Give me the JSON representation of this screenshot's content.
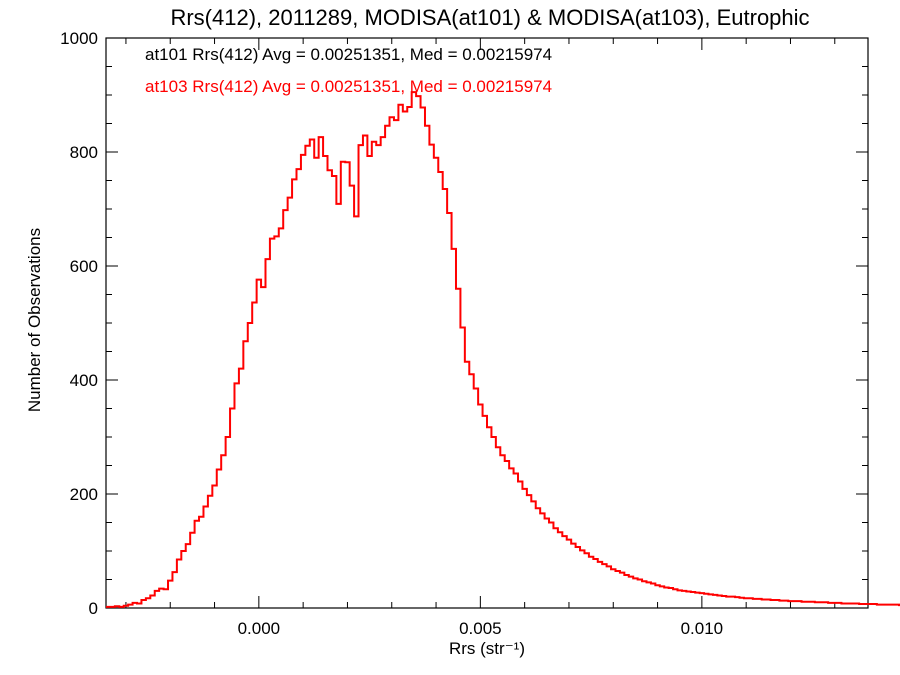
{
  "chart_data": {
    "type": "histogram",
    "title": "Rrs(412), 2011289, MODISA(at101) & MODISA(at103), Eutrophic",
    "xlabel": "Rrs (str⁻¹)",
    "ylabel": "Number of Observations",
    "xlim": [
      -0.00345,
      0.01375
    ],
    "ylim": [
      0,
      1000
    ],
    "x_ticks": [
      0.0,
      0.005,
      0.01
    ],
    "x_tick_labels": [
      "0.000",
      "0.005",
      "0.010"
    ],
    "y_ticks": [
      0,
      200,
      400,
      600,
      800,
      1000
    ],
    "y_tick_labels": [
      "0",
      "200",
      "400",
      "600",
      "800",
      "1000"
    ],
    "bin_width": 0.0001,
    "bin_start": -0.00345,
    "annotations": [
      {
        "text": "at101 Rrs(412) Avg = 0.00251351, Med = 0.00215974",
        "color": "#000000"
      },
      {
        "text": "at103 Rrs(412) Avg = 0.00251351, Med = 0.00215974",
        "color": "#ff0000"
      }
    ],
    "series": [
      {
        "color": "#ff0000",
        "counts": [
          2,
          2,
          3,
          2,
          4,
          6,
          9,
          8,
          14,
          17,
          22,
          30,
          34,
          33,
          48,
          63,
          85,
          100,
          112,
          132,
          153,
          160,
          178,
          197,
          215,
          243,
          268,
          300,
          350,
          394,
          420,
          468,
          500,
          536,
          576,
          563,
          612,
          648,
          652,
          666,
          698,
          720,
          752,
          770,
          795,
          811,
          822,
          790,
          826,
          793,
          768,
          758,
          709,
          783,
          782,
          741,
          687,
          812,
          829,
          793,
          818,
          812,
          826,
          846,
          861,
          856,
          883,
          871,
          879,
          905,
          898,
          878,
          846,
          813,
          790,
          765,
          735,
          693,
          630,
          560,
          492,
          432,
          410,
          385,
          357,
          337,
          317,
          300,
          282,
          268,
          258,
          245,
          236,
          222,
          209,
          198,
          187,
          175,
          166,
          157,
          150,
          140,
          133,
          126,
          120,
          113,
          107,
          101,
          96,
          90,
          86,
          81,
          77,
          73,
          68,
          65,
          62,
          58,
          55,
          52,
          50,
          47,
          45,
          43,
          40,
          38,
          36,
          35,
          33,
          31,
          30,
          29,
          28,
          27,
          26,
          25,
          24,
          23,
          22,
          21,
          20,
          20,
          19,
          18,
          17,
          17,
          16,
          16,
          15,
          15,
          14,
          14,
          13,
          13,
          12,
          12,
          12,
          11,
          11,
          11,
          10,
          10,
          10,
          9,
          9,
          9,
          8,
          8,
          8,
          8,
          7,
          7,
          7,
          7,
          6,
          6,
          6,
          6,
          6,
          5
        ]
      }
    ]
  }
}
